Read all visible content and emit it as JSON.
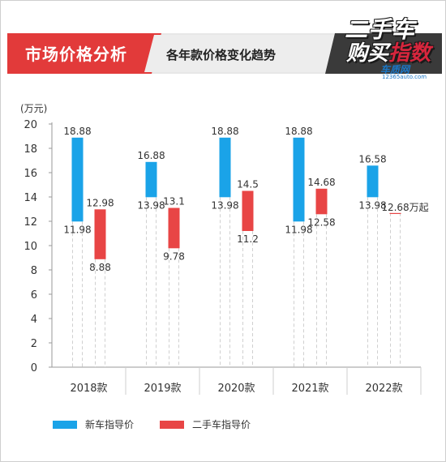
{
  "header": {
    "section_title": "市场价格分析",
    "chart_subtitle": "各年款价格变化趋势"
  },
  "logo": {
    "line1": "二手车",
    "line2a": "购买",
    "line2b": "指数",
    "brand": "车质网",
    "url": "12365auto.com"
  },
  "colors": {
    "new_car": "#1aa3e8",
    "used_car": "#e84545",
    "header_red": "#e23a3a",
    "header_dark": "#3a3a3a"
  },
  "chart_data": {
    "type": "bar",
    "unit_label": "(万元)",
    "categories": [
      "2018款",
      "2019款",
      "2020款",
      "2021款",
      "2022款"
    ],
    "ylim": [
      0,
      20
    ],
    "yticks": [
      0,
      2,
      4,
      6,
      8,
      10,
      12,
      14,
      16,
      18,
      20
    ],
    "grid": false,
    "legend_position": "bottom",
    "series": [
      {
        "name": "新车指导价",
        "ranges": [
          [
            11.98,
            18.88
          ],
          [
            13.98,
            16.88
          ],
          [
            13.98,
            18.88
          ],
          [
            11.98,
            18.88
          ],
          [
            13.98,
            16.58
          ]
        ],
        "high_labels": [
          "18.88",
          "16.88",
          "18.88",
          "18.88",
          "16.58"
        ],
        "low_labels": [
          "11.98",
          "13.98",
          "13.98",
          "11.98",
          "13.98"
        ]
      },
      {
        "name": "二手车指导价",
        "ranges": [
          [
            8.88,
            12.98
          ],
          [
            9.78,
            13.1
          ],
          [
            11.2,
            14.5
          ],
          [
            12.58,
            14.68
          ],
          [
            12.68,
            12.68
          ]
        ],
        "high_labels": [
          "12.98",
          "13.1",
          "14.5",
          "14.68",
          "12.68万起"
        ],
        "low_labels": [
          "8.88",
          "9.78",
          "11.2",
          "12.58",
          ""
        ]
      }
    ]
  }
}
